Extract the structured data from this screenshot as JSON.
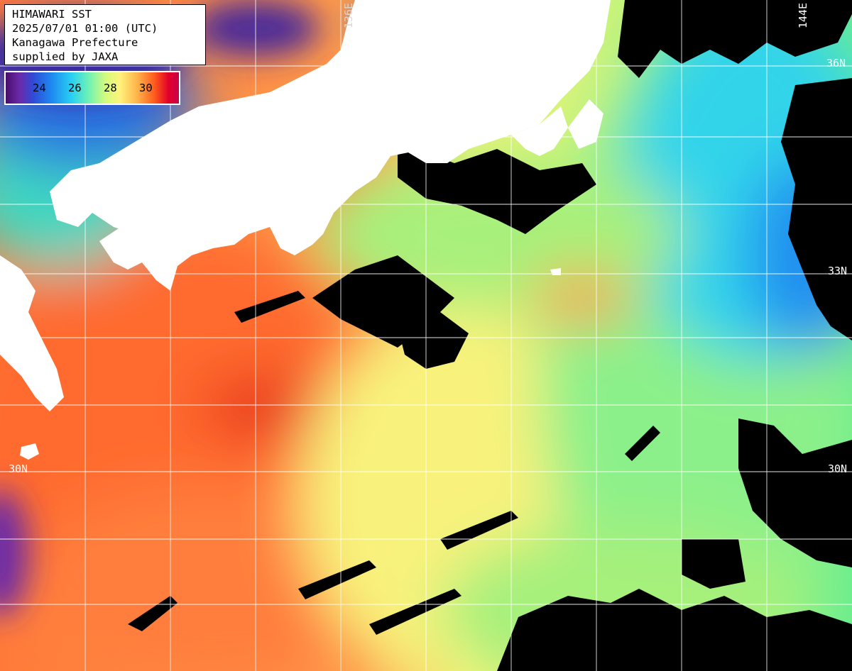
{
  "info": {
    "title": "HIMAWARI SST",
    "datetime": "2025/07/01 01:00 (UTC)",
    "region": "Kanagawa Prefecture",
    "credit": "supplied by JAXA"
  },
  "colorbar": {
    "labels": [
      "24",
      "26",
      "28",
      "30"
    ]
  },
  "grid_labels": {
    "lon_136": "136E",
    "lon_144": "144E",
    "lat_36": "36N",
    "lat_33": "33N",
    "lat_30_left": "30N",
    "lat_30_right": "30N"
  },
  "colors": {
    "land": "#ffffff",
    "no_data_cloud": "#000000",
    "sst_24": "#1f86f0",
    "sst_26": "#28d0f2",
    "sst_28": "#fff27c",
    "sst_30": "#e0002a"
  }
}
